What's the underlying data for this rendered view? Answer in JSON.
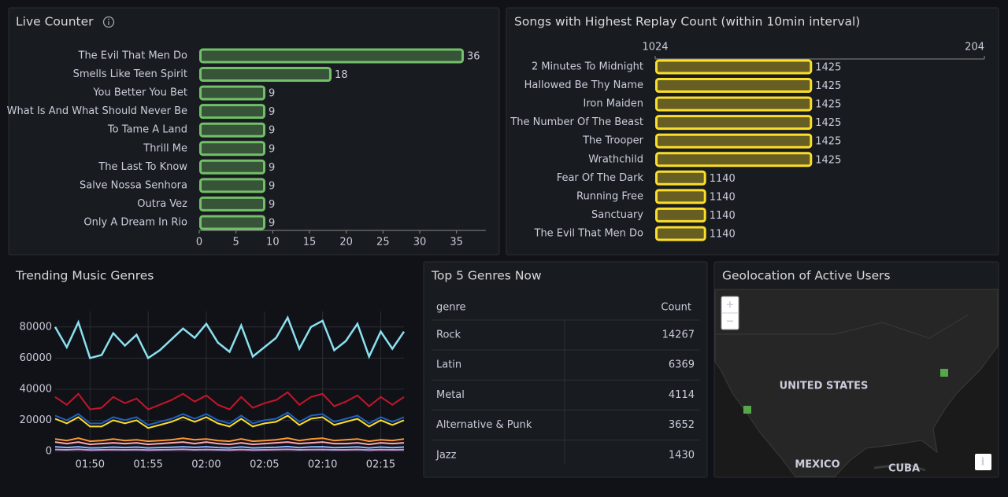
{
  "chart_data": [
    {
      "type": "bar",
      "orientation": "horizontal",
      "title": "Live Counter",
      "categories": [
        "The Evil That Men Do",
        "Smells Like Teen Spirit",
        "You Better You Bet",
        "What Is And What Should Never Be",
        "To Tame A Land",
        "Thrill Me",
        "The Last To Know",
        "Salve Nossa Senhora",
        "Outra Vez",
        "Only A Dream In Rio"
      ],
      "values": [
        36,
        18,
        9,
        9,
        9,
        9,
        9,
        9,
        9,
        9
      ],
      "color": "#73bf69",
      "xlim": [
        0,
        39
      ],
      "xticks": [
        0,
        5,
        10,
        15,
        20,
        25,
        30,
        35
      ]
    },
    {
      "type": "bar",
      "orientation": "horizontal",
      "title": "Songs with Highest Replay Count (within 10min interval)",
      "categories": [
        "2 Minutes To Midnight",
        "Hallowed Be Thy Name",
        "Iron Maiden",
        "The Number Of The Beast",
        "The Trooper",
        "Wrathchild",
        "Fear Of The Dark",
        "Running Free",
        "Sanctuary",
        "The Evil That Men Do"
      ],
      "values": [
        1425,
        1425,
        1425,
        1425,
        1425,
        1425,
        1140,
        1140,
        1140,
        1140
      ],
      "color": "#fade2a",
      "log_base": 2,
      "xlim": [
        1024,
        2048
      ],
      "xticks": [
        1024,
        {
          "value": 2048,
          "label": "204"
        }
      ]
    },
    {
      "type": "line",
      "title": "Trending Music Genres",
      "x": [
        "01:47",
        "01:48",
        "01:49",
        "01:50",
        "01:51",
        "01:52",
        "01:53",
        "01:54",
        "01:55",
        "01:56",
        "01:57",
        "01:58",
        "01:59",
        "02:00",
        "02:01",
        "02:02",
        "02:03",
        "02:04",
        "02:05",
        "02:06",
        "02:07",
        "02:08",
        "02:09",
        "02:10",
        "02:11",
        "02:12",
        "02:13",
        "02:14",
        "02:15",
        "02:16",
        "02:17"
      ],
      "xticks": [
        "01:50",
        "01:55",
        "02:00",
        "02:05",
        "02:10",
        "02:15"
      ],
      "ylim": [
        0,
        90000
      ],
      "yticks": [
        0,
        20000,
        40000,
        60000,
        80000
      ],
      "series": [
        {
          "color": "#8ab8ff",
          "values": [
            3000,
            2500,
            3000,
            2200,
            2400,
            2800,
            2500,
            2800,
            2200,
            2500,
            2700,
            3000,
            2600,
            3000,
            2500,
            2200,
            2900,
            2200,
            2500,
            2700,
            3100,
            2400,
            2900,
            3000,
            2400,
            2600,
            2900,
            2200,
            2800,
            2400,
            2800
          ]
        },
        {
          "color": "#ca95e5",
          "values": [
            1200,
            1000,
            1300,
            900,
            1000,
            1100,
            1000,
            1100,
            900,
            1000,
            1100,
            1300,
            1000,
            1200,
            1000,
            900,
            1200,
            900,
            1000,
            1100,
            1300,
            1000,
            1100,
            1200,
            1000,
            1000,
            1200,
            900,
            1100,
            1000,
            1100
          ]
        },
        {
          "color": "#ffa6b0",
          "values": [
            6000,
            5000,
            6000,
            4500,
            5000,
            5500,
            5000,
            5500,
            4500,
            5000,
            5500,
            6000,
            5000,
            6000,
            5000,
            4500,
            5500,
            4500,
            5000,
            5500,
            6000,
            5000,
            5500,
            6000,
            5000,
            5000,
            5500,
            4500,
            5500,
            5000,
            5500
          ]
        },
        {
          "color": "#ff9830",
          "values": [
            8000,
            7000,
            8500,
            6500,
            7000,
            8000,
            7000,
            7500,
            6500,
            7000,
            7500,
            8500,
            7500,
            8000,
            7000,
            6500,
            8000,
            6500,
            7000,
            7500,
            8500,
            7000,
            8000,
            8500,
            7000,
            7500,
            8000,
            6500,
            7500,
            7000,
            8000
          ]
        },
        {
          "color": "#1f60c4",
          "values": [
            23000,
            20000,
            24000,
            18000,
            18000,
            22000,
            20000,
            22000,
            17000,
            19000,
            21000,
            24000,
            21000,
            24000,
            20000,
            18000,
            23000,
            18000,
            20000,
            21000,
            25000,
            19000,
            23000,
            24000,
            19000,
            21000,
            23000,
            18000,
            22000,
            19000,
            22000
          ]
        },
        {
          "color": "#fade2a",
          "values": [
            21000,
            18000,
            22000,
            16000,
            16000,
            20000,
            18000,
            20000,
            15000,
            17000,
            19000,
            22000,
            19000,
            22000,
            18000,
            16000,
            21000,
            16000,
            18000,
            19000,
            23000,
            17000,
            21000,
            22000,
            17000,
            19000,
            21000,
            16000,
            20000,
            17000,
            20000
          ]
        },
        {
          "color": "#c4162a",
          "values": [
            35000,
            30000,
            37000,
            27000,
            28000,
            35000,
            31000,
            34000,
            27000,
            30000,
            33000,
            37000,
            32000,
            36000,
            30000,
            27000,
            35000,
            28000,
            31000,
            33000,
            38000,
            30000,
            35000,
            37000,
            29000,
            32000,
            36000,
            29000,
            35000,
            30000,
            35000
          ]
        },
        {
          "color": "#8ae0f0",
          "values": [
            80000,
            67000,
            83000,
            60000,
            62000,
            76000,
            68000,
            75000,
            60000,
            65000,
            72000,
            79000,
            73000,
            82000,
            70000,
            64000,
            81000,
            61000,
            67000,
            73000,
            86000,
            66000,
            80000,
            84000,
            65000,
            71000,
            82000,
            61000,
            77000,
            66000,
            77000
          ]
        }
      ]
    }
  ],
  "table": {
    "title": "Top 5 Genres Now",
    "columns": [
      "genre",
      "Count"
    ],
    "rows": [
      [
        "Rock",
        "14267"
      ],
      [
        "Latin",
        "6369"
      ],
      [
        "Metal",
        "4114"
      ],
      [
        "Alternative & Punk",
        "3652"
      ],
      [
        "Jazz",
        "1430"
      ]
    ]
  },
  "map": {
    "title": "Geolocation of Active Users",
    "country_labels": [
      "UNITED STATES",
      "MEXICO",
      "CUBA"
    ],
    "zoom_in": "+",
    "zoom_out": "−",
    "info": "i"
  }
}
